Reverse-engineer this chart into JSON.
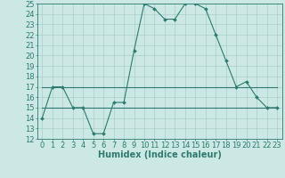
{
  "title": "",
  "xlabel": "Humidex (Indice chaleur)",
  "ylabel": "",
  "x": [
    0,
    1,
    2,
    3,
    4,
    5,
    6,
    7,
    8,
    9,
    10,
    11,
    12,
    13,
    14,
    15,
    16,
    17,
    18,
    19,
    20,
    21,
    22,
    23
  ],
  "y_curve": [
    14,
    17,
    17,
    15,
    15,
    12.5,
    12.5,
    15.5,
    15.5,
    20.5,
    25,
    24.5,
    23.5,
    23.5,
    25,
    25,
    24.5,
    22,
    19.5,
    17,
    17.5,
    16,
    15,
    15
  ],
  "y_flat1": [
    17,
    17,
    17,
    17,
    17,
    17,
    17,
    17,
    17,
    17,
    17,
    17,
    17,
    17,
    17,
    17,
    17,
    17,
    17,
    17,
    17,
    17,
    17,
    17
  ],
  "y_flat2": [
    15,
    15,
    15,
    15,
    15,
    15,
    15,
    15,
    15,
    15,
    15,
    15,
    15,
    15,
    15,
    15,
    15,
    15,
    15,
    15,
    15,
    15,
    15,
    15
  ],
  "line_color": "#2d7a6e",
  "bg_color": "#cce8e4",
  "grid_color": "#a0c8c4",
  "ylim": [
    12,
    25
  ],
  "xlim": [
    -0.5,
    23.5
  ],
  "yticks": [
    12,
    13,
    14,
    15,
    16,
    17,
    18,
    19,
    20,
    21,
    22,
    23,
    24,
    25
  ],
  "xticks": [
    0,
    1,
    2,
    3,
    4,
    5,
    6,
    7,
    8,
    9,
    10,
    11,
    12,
    13,
    14,
    15,
    16,
    17,
    18,
    19,
    20,
    21,
    22,
    23
  ],
  "tick_font_size": 6.0,
  "label_font_size": 7.0
}
